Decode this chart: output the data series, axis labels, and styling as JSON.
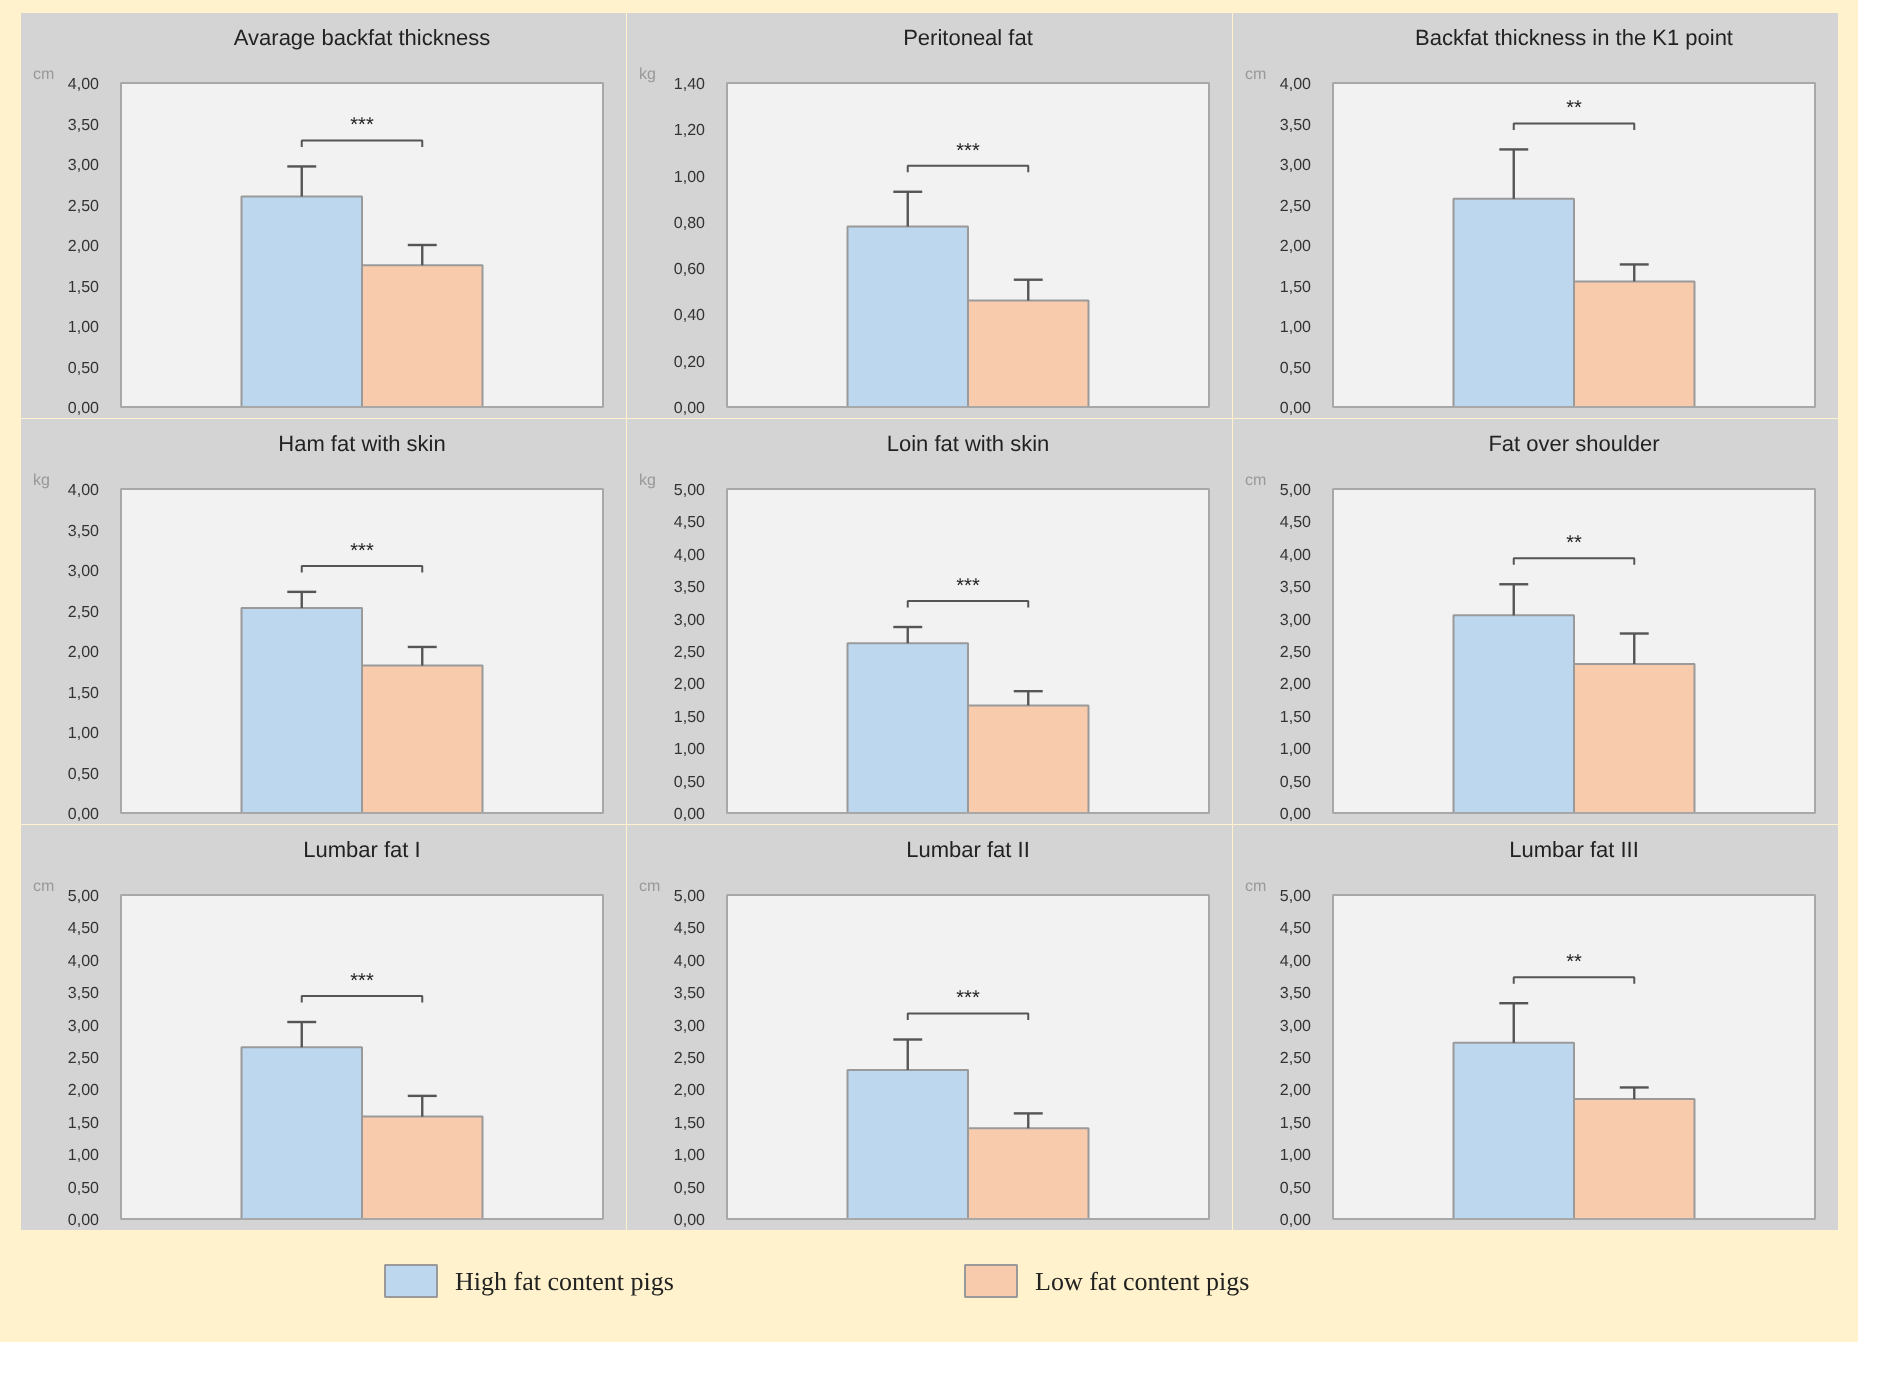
{
  "chart_data": [
    {
      "type": "bar",
      "title": "Avarage backfat thickness",
      "ylabel": "cm",
      "categories": [
        null
      ],
      "series": [
        {
          "name": "High fat content pigs",
          "color": "#bdd7ee",
          "values": [
            2.6
          ],
          "errors": [
            [
              2.6,
              2.97
            ]
          ]
        },
        {
          "name": "Low fat content pigs",
          "color": "#f8cbad",
          "values": [
            1.75
          ],
          "errors": [
            [
              1.75,
              2.0
            ]
          ]
        }
      ],
      "ylim": [
        0,
        4
      ],
      "yticks": [
        {
          "value": 0,
          "label": "0,00"
        },
        {
          "value": 0.5,
          "label": "0,50"
        },
        {
          "value": 1,
          "label": "1,00"
        },
        {
          "value": 1.5,
          "label": "1,50"
        },
        {
          "value": 2,
          "label": "2,00"
        },
        {
          "value": 2.5,
          "label": "2,50"
        },
        {
          "value": 3,
          "label": "3,00"
        },
        {
          "value": 3.5,
          "label": "3,50"
        },
        {
          "value": 4,
          "label": "4,00"
        }
      ],
      "annotations": [
        "***"
      ],
      "tick_labels": "y",
      "grid": false,
      "legend": "bottom"
    },
    {
      "type": "bar",
      "title": "Peritoneal fat",
      "ylabel": "kg",
      "categories": [
        null
      ],
      "series": [
        {
          "name": "High fat content pigs",
          "color": "#bdd7ee",
          "values": [
            0.78
          ],
          "errors": [
            [
              0.78,
              0.93
            ]
          ]
        },
        {
          "name": "Low fat content pigs",
          "color": "#f8cbad",
          "values": [
            0.46
          ],
          "errors": [
            [
              0.46,
              0.55
            ]
          ]
        }
      ],
      "ylim": [
        0,
        1.4
      ],
      "yticks": [
        {
          "value": 0,
          "label": "0,00"
        },
        {
          "value": 0.2,
          "label": "0,20"
        },
        {
          "value": 0.4,
          "label": "0,40"
        },
        {
          "value": 0.6,
          "label": "0,60"
        },
        {
          "value": 0.8,
          "label": "0,80"
        },
        {
          "value": 1.0,
          "label": "1,00"
        },
        {
          "value": 1.2,
          "label": "1,20"
        },
        {
          "value": 1.4,
          "label": "1,40"
        }
      ],
      "annotations": [
        "***"
      ],
      "tick_labels": "y",
      "grid": false
    },
    {
      "type": "bar",
      "title": "Backfat thickness in the K1 point",
      "ylabel": "cm",
      "categories": [
        null
      ],
      "series": [
        {
          "name": "High fat content pigs",
          "color": "#bdd7ee",
          "values": [
            2.57
          ],
          "errors": [
            [
              2.57,
              3.18
            ]
          ]
        },
        {
          "name": "Low fat content pigs",
          "color": "#f8cbad",
          "values": [
            1.55
          ],
          "errors": [
            [
              1.55,
              1.76
            ]
          ]
        }
      ],
      "ylim": [
        0,
        4
      ],
      "yticks": [
        {
          "value": 0,
          "label": "0,00"
        },
        {
          "value": 0.5,
          "label": "0,50"
        },
        {
          "value": 1,
          "label": "1,00"
        },
        {
          "value": 1.5,
          "label": "1,50"
        },
        {
          "value": 2,
          "label": "2,00"
        },
        {
          "value": 2.5,
          "label": "2,50"
        },
        {
          "value": 3,
          "label": "3,00"
        },
        {
          "value": 3.5,
          "label": "3,50"
        },
        {
          "value": 4,
          "label": "4,00"
        }
      ],
      "annotations": [
        "**"
      ],
      "tick_labels": "y",
      "grid": false
    },
    {
      "type": "bar",
      "title": "Ham fat with skin",
      "ylabel": "kg",
      "categories": [
        null
      ],
      "series": [
        {
          "name": "High fat content pigs",
          "color": "#bdd7ee",
          "values": [
            2.53
          ],
          "errors": [
            [
              2.53,
              2.73
            ]
          ]
        },
        {
          "name": "Low fat content pigs",
          "color": "#f8cbad",
          "values": [
            1.82
          ],
          "errors": [
            [
              1.82,
              2.05
            ]
          ]
        }
      ],
      "ylim": [
        0,
        4
      ],
      "yticks": [
        {
          "value": 0,
          "label": "0,00"
        },
        {
          "value": 0.5,
          "label": "0,50"
        },
        {
          "value": 1,
          "label": "1,00"
        },
        {
          "value": 1.5,
          "label": "1,50"
        },
        {
          "value": 2,
          "label": "2,00"
        },
        {
          "value": 2.5,
          "label": "2,50"
        },
        {
          "value": 3,
          "label": "3,00"
        },
        {
          "value": 3.5,
          "label": "3,50"
        },
        {
          "value": 4,
          "label": "4,00"
        }
      ],
      "annotations": [
        "***"
      ],
      "tick_labels": "y",
      "grid": false
    },
    {
      "type": "bar",
      "title": "Loin fat with skin",
      "ylabel": "kg",
      "categories": [
        null
      ],
      "series": [
        {
          "name": "High fat content pigs",
          "color": "#bdd7ee",
          "values": [
            2.62
          ],
          "errors": [
            [
              2.62,
              2.87
            ]
          ]
        },
        {
          "name": "Low fat content pigs",
          "color": "#f8cbad",
          "values": [
            1.66
          ],
          "errors": [
            [
              1.66,
              1.88
            ]
          ]
        }
      ],
      "ylim": [
        0,
        5
      ],
      "yticks": [
        {
          "value": 0,
          "label": "0,00"
        },
        {
          "value": 0.5,
          "label": "0,50"
        },
        {
          "value": 1,
          "label": "1,00"
        },
        {
          "value": 1.5,
          "label": "1,50"
        },
        {
          "value": 2,
          "label": "2,00"
        },
        {
          "value": 2.5,
          "label": "2,50"
        },
        {
          "value": 3,
          "label": "3,00"
        },
        {
          "value": 3.5,
          "label": "3,50"
        },
        {
          "value": 4,
          "label": "4,00"
        },
        {
          "value": 4.5,
          "label": "4,50"
        },
        {
          "value": 5,
          "label": "5,00"
        }
      ],
      "annotations": [
        "***"
      ],
      "tick_labels": "y",
      "grid": false
    },
    {
      "type": "bar",
      "title": "Fat over shoulder",
      "ylabel": "cm",
      "categories": [
        null
      ],
      "series": [
        {
          "name": "High fat content pigs",
          "color": "#bdd7ee",
          "values": [
            3.05
          ],
          "errors": [
            [
              3.05,
              3.53
            ]
          ]
        },
        {
          "name": "Low fat content pigs",
          "color": "#f8cbad",
          "values": [
            2.3
          ],
          "errors": [
            [
              2.3,
              2.77
            ]
          ]
        }
      ],
      "ylim": [
        0,
        5
      ],
      "yticks": [
        {
          "value": 0,
          "label": "0,00"
        },
        {
          "value": 0.5,
          "label": "0,50"
        },
        {
          "value": 1,
          "label": "1,00"
        },
        {
          "value": 1.5,
          "label": "1,50"
        },
        {
          "value": 2,
          "label": "2,00"
        },
        {
          "value": 2.5,
          "label": "2,50"
        },
        {
          "value": 3,
          "label": "3,00"
        },
        {
          "value": 3.5,
          "label": "3,50"
        },
        {
          "value": 4,
          "label": "4,00"
        },
        {
          "value": 4.5,
          "label": "4,50"
        },
        {
          "value": 5,
          "label": "5,00"
        }
      ],
      "annotations": [
        "**"
      ],
      "tick_labels": "y",
      "grid": false
    },
    {
      "type": "bar",
      "title": "Lumbar fat I",
      "ylabel": "cm",
      "categories": [
        null
      ],
      "series": [
        {
          "name": "High fat content pigs",
          "color": "#bdd7ee",
          "values": [
            2.65
          ],
          "errors": [
            [
              2.65,
              3.04
            ]
          ]
        },
        {
          "name": "Low fat content pigs",
          "color": "#f8cbad",
          "values": [
            1.58
          ],
          "errors": [
            [
              1.58,
              1.9
            ]
          ]
        }
      ],
      "ylim": [
        0,
        5
      ],
      "yticks": [
        {
          "value": 0,
          "label": "0,00"
        },
        {
          "value": 0.5,
          "label": "0,50"
        },
        {
          "value": 1,
          "label": "1,00"
        },
        {
          "value": 1.5,
          "label": "1,50"
        },
        {
          "value": 2,
          "label": "2,00"
        },
        {
          "value": 2.5,
          "label": "2,50"
        },
        {
          "value": 3,
          "label": "3,00"
        },
        {
          "value": 3.5,
          "label": "3,50"
        },
        {
          "value": 4,
          "label": "4,00"
        },
        {
          "value": 4.5,
          "label": "4,50"
        },
        {
          "value": 5,
          "label": "5,00"
        }
      ],
      "annotations": [
        "***"
      ],
      "tick_labels": "y",
      "grid": false
    },
    {
      "type": "bar",
      "title": "Lumbar fat II",
      "ylabel": "cm",
      "categories": [
        null
      ],
      "series": [
        {
          "name": "High fat content pigs",
          "color": "#bdd7ee",
          "values": [
            2.3
          ],
          "errors": [
            [
              2.3,
              2.77
            ]
          ]
        },
        {
          "name": "Low fat content pigs",
          "color": "#f8cbad",
          "values": [
            1.4
          ],
          "errors": [
            [
              1.4,
              1.63
            ]
          ]
        }
      ],
      "ylim": [
        0,
        5
      ],
      "yticks": [
        {
          "value": 0,
          "label": "0,00"
        },
        {
          "value": 0.5,
          "label": "0,50"
        },
        {
          "value": 1,
          "label": "1,00"
        },
        {
          "value": 1.5,
          "label": "1,50"
        },
        {
          "value": 2,
          "label": "2,00"
        },
        {
          "value": 2.5,
          "label": "2,50"
        },
        {
          "value": 3,
          "label": "3,00"
        },
        {
          "value": 3.5,
          "label": "3,50"
        },
        {
          "value": 4,
          "label": "4,00"
        },
        {
          "value": 4.5,
          "label": "4,50"
        },
        {
          "value": 5,
          "label": "5,00"
        }
      ],
      "annotations": [
        "***"
      ],
      "tick_labels": "y",
      "grid": false
    },
    {
      "type": "bar",
      "title": "Lumbar fat III",
      "ylabel": "cm",
      "categories": [
        null
      ],
      "series": [
        {
          "name": "High fat content pigs",
          "color": "#bdd7ee",
          "values": [
            2.72
          ],
          "errors": [
            [
              2.72,
              3.33
            ]
          ]
        },
        {
          "name": "Low fat content pigs",
          "color": "#f8cbad",
          "values": [
            1.85
          ],
          "errors": [
            [
              1.85,
              2.03
            ]
          ]
        }
      ],
      "ylim": [
        0,
        5
      ],
      "yticks": [
        {
          "value": 0,
          "label": "0,00"
        },
        {
          "value": 0.5,
          "label": "0,50"
        },
        {
          "value": 1,
          "label": "1,00"
        },
        {
          "value": 1.5,
          "label": "1,50"
        },
        {
          "value": 2,
          "label": "2,00"
        },
        {
          "value": 2.5,
          "label": "2,50"
        },
        {
          "value": 3,
          "label": "3,00"
        },
        {
          "value": 3.5,
          "label": "3,50"
        },
        {
          "value": 4,
          "label": "4,00"
        },
        {
          "value": 4.5,
          "label": "4,50"
        },
        {
          "value": 5,
          "label": "5,00"
        }
      ],
      "annotations": [
        "**"
      ],
      "tick_labels": "y",
      "grid": false
    }
  ]
}
